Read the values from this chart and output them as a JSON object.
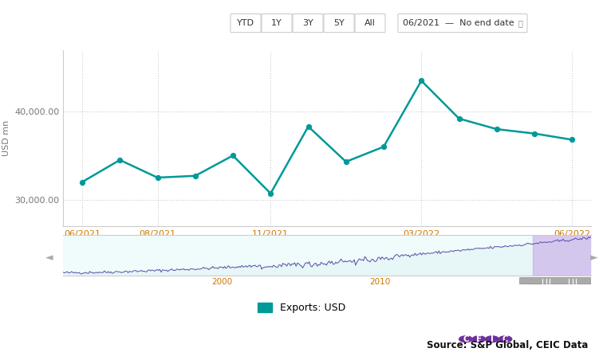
{
  "y_values": [
    32000,
    34500,
    32500,
    32700,
    35000,
    30700,
    38300,
    34300,
    36000,
    43500,
    39200,
    38000,
    37500,
    36800
  ],
  "xtick_positions": [
    0,
    2,
    5,
    9,
    13
  ],
  "x_labels": [
    "06/2021",
    "08/2021",
    "11/2021",
    "03/2022",
    "06/2022"
  ],
  "line_color": "#009999",
  "marker_color": "#009999",
  "ylabel": "USD mn",
  "ylim": [
    27000,
    47000
  ],
  "yticks": [
    30000,
    40000
  ],
  "grid_color": "#cccccc",
  "bg_color": "#ffffff",
  "legend_label": "Exports: USD",
  "legend_color": "#009999",
  "source_text": "Source: S&P Global, CEIC Data",
  "minimap_line_color": "#5b4ea8",
  "minimap_fill_color": "#d8eff0",
  "minimap_highlight_color": "#c8a8e8",
  "toolbar_buttons": [
    "YTD",
    "1Y",
    "3Y",
    "5Y",
    "All"
  ],
  "toolbar_date": "06/2021  —  No end date",
  "toolbar_bg": "#f5f5f5",
  "toolbar_border": "#dddddd",
  "active_button": "All"
}
